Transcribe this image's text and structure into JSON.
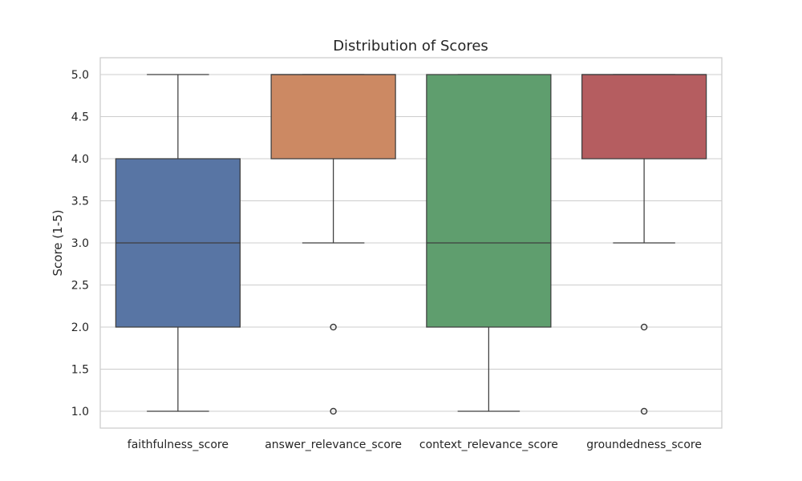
{
  "chart_data": {
    "type": "box",
    "title": "Distribution of Scores",
    "xlabel": "",
    "ylabel": "Score (1-5)",
    "ylim": [
      0.8,
      5.2
    ],
    "yticks": [
      "1.0",
      "1.5",
      "2.0",
      "2.5",
      "3.0",
      "3.5",
      "4.0",
      "4.5",
      "5.0"
    ],
    "grid": true,
    "categories": [
      "faithfulness_score",
      "answer_relevance_score",
      "context_relevance_score",
      "groundedness_score"
    ],
    "series": [
      {
        "category": "faithfulness_score",
        "color": "#5875a4",
        "min": 1.0,
        "q1": 2.0,
        "median": 3.0,
        "q3": 4.0,
        "max": 5.0,
        "outliers": []
      },
      {
        "category": "answer_relevance_score",
        "color": "#cc8963",
        "min": 3.0,
        "q1": 4.0,
        "median": 5.0,
        "q3": 5.0,
        "max": 5.0,
        "outliers": [
          2.0,
          1.0
        ]
      },
      {
        "category": "context_relevance_score",
        "color": "#5f9e6e",
        "min": 1.0,
        "q1": 2.0,
        "median": 3.0,
        "q3": 5.0,
        "max": 5.0,
        "outliers": []
      },
      {
        "category": "groundedness_score",
        "color": "#b55d60",
        "min": 3.0,
        "q1": 4.0,
        "median": 5.0,
        "q3": 5.0,
        "max": 5.0,
        "outliers": [
          2.0,
          1.0
        ]
      }
    ]
  }
}
